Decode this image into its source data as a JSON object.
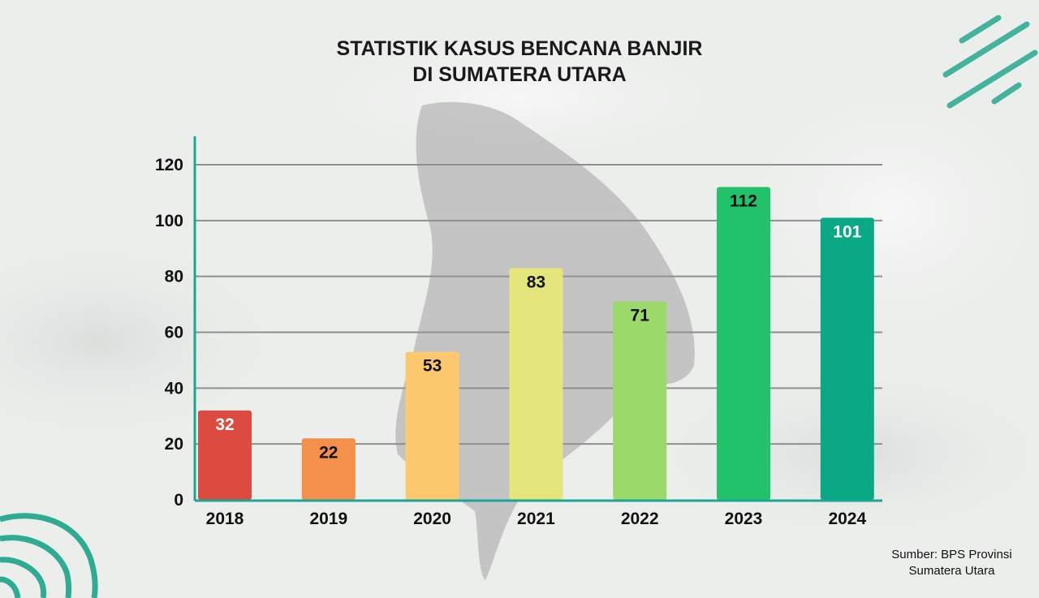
{
  "title_lines": [
    "STATISTIK KASUS BENCANA BANJIR",
    "DI SUMATERA UTARA"
  ],
  "source_lines": [
    "Sumber: BPS Provinsi",
    "Sumatera Utara"
  ],
  "colors": {
    "background": "#eceeec",
    "grid": "#8f8f8f",
    "y_axis": "#1aa594",
    "x_axis": "#1aa594",
    "decoration": "#1aa58a",
    "map_silhouette": "#9a9a9a"
  },
  "chart_data": {
    "type": "bar",
    "title": "STATISTIK KASUS BENCANA BANJIR DI SUMATERA UTARA",
    "xlabel": "",
    "ylabel": "",
    "categories": [
      "2018",
      "2019",
      "2020",
      "2021",
      "2022",
      "2023",
      "2024"
    ],
    "values": [
      32,
      22,
      53,
      83,
      71,
      112,
      101
    ],
    "bar_colors": [
      "#dc4b3f",
      "#f48f4c",
      "#fbc86e",
      "#e4e57a",
      "#9ad96a",
      "#21c26a",
      "#0aa986"
    ],
    "label_colors": [
      "#ffffff",
      "#111111",
      "#111111",
      "#111111",
      "#111111",
      "#111111",
      "#ffffff"
    ],
    "ylim": [
      0,
      120
    ],
    "yticks": [
      0,
      20,
      40,
      60,
      80,
      100,
      120
    ],
    "grid": true,
    "legend": "none"
  }
}
